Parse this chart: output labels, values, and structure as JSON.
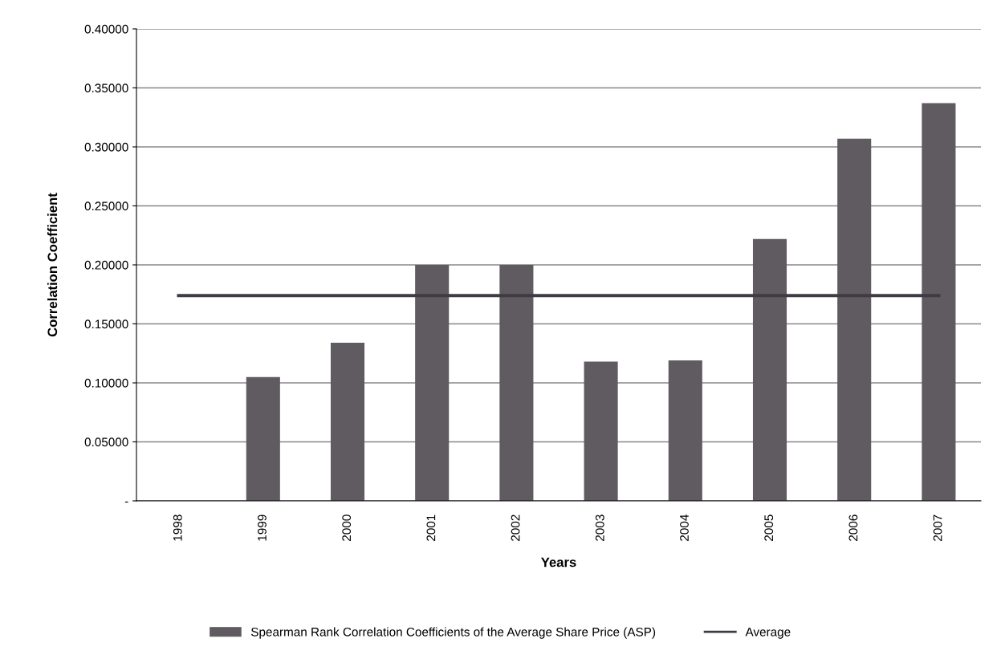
{
  "chart_data": {
    "type": "bar",
    "xlabel": "Years",
    "ylabel": "Correlation Coefficient",
    "categories": [
      "1998",
      "1999",
      "2000",
      "2001",
      "2002",
      "2003",
      "2004",
      "2005",
      "2006",
      "2007"
    ],
    "series": [
      {
        "name": "Spearman Rank Correlation Coefficients of the Average Share Price (ASP)",
        "color": "#5f5b61",
        "values": [
          0,
          0.105,
          0.134,
          0.2,
          0.2,
          0.118,
          0.119,
          0.222,
          0.307,
          0.337
        ]
      },
      {
        "name": "Average",
        "type": "line",
        "color": "#3f3b42",
        "values": [
          0.174,
          0.174,
          0.174,
          0.174,
          0.174,
          0.174,
          0.174,
          0.174,
          0.174,
          0.174
        ]
      }
    ],
    "ylim": [
      0,
      0.4
    ],
    "yticks": [
      {
        "value": 0,
        "label": "-"
      },
      {
        "value": 0.05,
        "label": "0.05000"
      },
      {
        "value": 0.1,
        "label": "0.10000"
      },
      {
        "value": 0.15,
        "label": "0.15000"
      },
      {
        "value": 0.2,
        "label": "0.20000"
      },
      {
        "value": 0.25,
        "label": "0.25000"
      },
      {
        "value": 0.3,
        "label": "0.30000"
      },
      {
        "value": 0.35,
        "label": "0.35000"
      },
      {
        "value": 0.4,
        "label": "0.40000"
      }
    ],
    "grid": "y",
    "legend": "bottom",
    "marker": "none",
    "line_style": "solid"
  }
}
